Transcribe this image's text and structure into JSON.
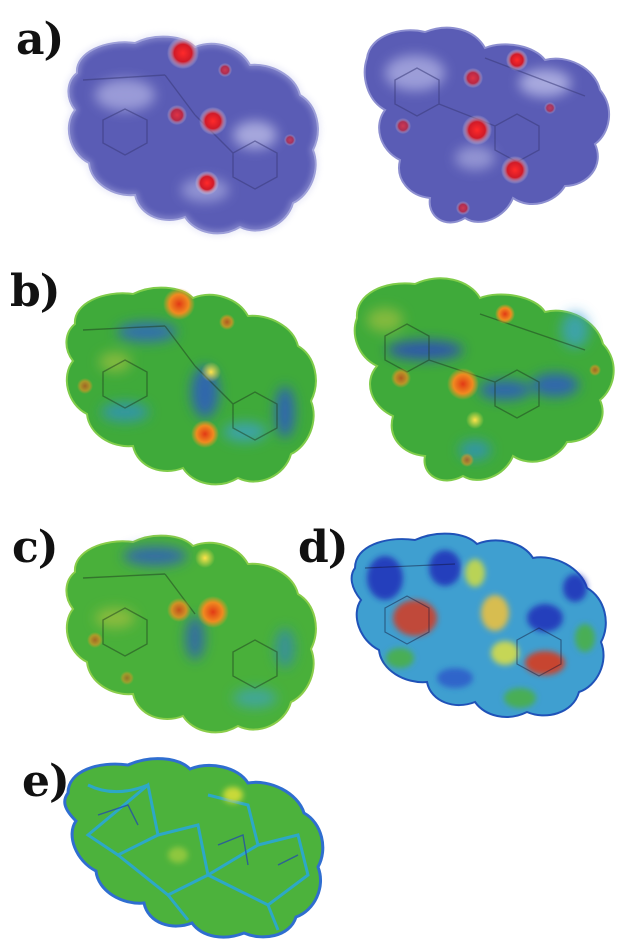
{
  "panels": [
    {
      "label": "a)"
    },
    {
      "label": "b)"
    },
    {
      "label": "c)"
    },
    {
      "label": "d)"
    },
    {
      "label": "e)"
    }
  ],
  "colors": {
    "dnorm_surface": "#5b5fb8",
    "dnorm_contact": "#e0242a",
    "shape_surface": "#3fae3a",
    "shape_blue": "#2b55c9",
    "shape_red": "#d93a1f",
    "shape_yellow": "#f2e23a",
    "curvedness_edge": "#2aa7d6",
    "background": "#ffffff"
  }
}
